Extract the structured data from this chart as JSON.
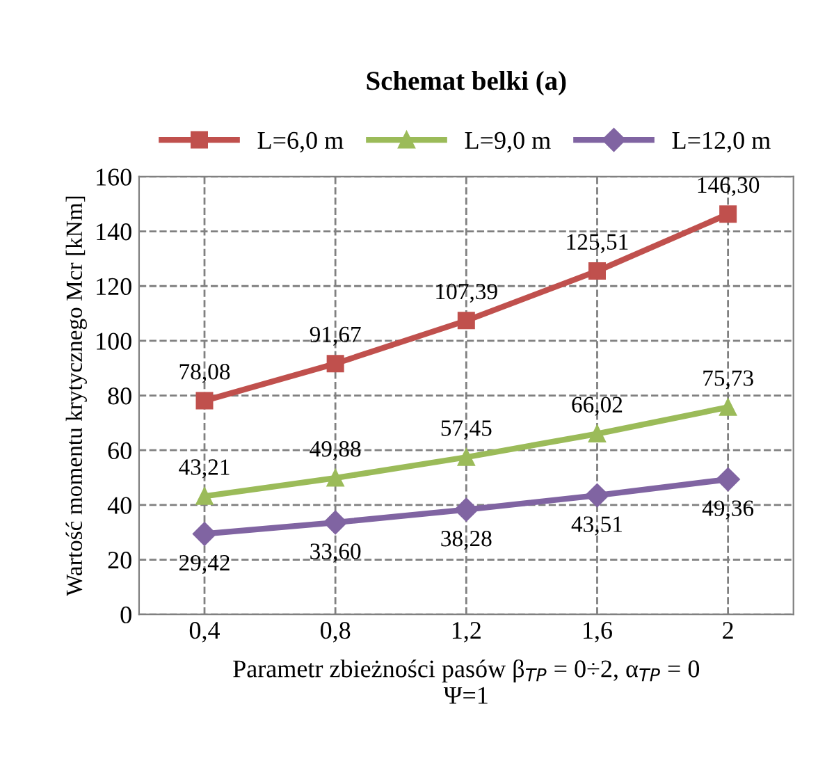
{
  "chart_data": {
    "type": "line",
    "title": "Schemat belki (a)",
    "xlabel": "Parametr zbieżności pasów β$_{TP}$ = 0÷2, α$_{TP}$ = 0\nΨ=1",
    "ylabel": "Wartość momentu krytycznego Mcr [kNm]",
    "categories": [
      "0,4",
      "0,8",
      "1,2",
      "1,6",
      "2"
    ],
    "series": [
      {
        "name": "L=6,0 m",
        "color": "#c0504d",
        "marker": "square",
        "values": [
          78.08,
          91.67,
          107.39,
          125.51,
          146.3
        ],
        "value_labels": [
          "78,08",
          "91,67",
          "107,39",
          "125,51",
          "146,30"
        ]
      },
      {
        "name": "L=9,0 m",
        "color": "#9bbb59",
        "marker": "triangle",
        "values": [
          43.21,
          49.88,
          57.45,
          66.02,
          75.73
        ],
        "value_labels": [
          "43,21",
          "49,88",
          "57,45",
          "66,02",
          "75,73"
        ]
      },
      {
        "name": "L=12,0 m",
        "color": "#8064a2",
        "marker": "diamond",
        "values": [
          29.42,
          33.6,
          38.28,
          43.51,
          49.36
        ],
        "value_labels": [
          "29,42",
          "33,60",
          "38,28",
          "43,51",
          "49,36"
        ]
      }
    ],
    "ylim": [
      0,
      160
    ],
    "yticks": [
      0,
      20,
      40,
      60,
      80,
      100,
      120,
      140,
      160
    ],
    "grid": true,
    "legend": "top"
  }
}
